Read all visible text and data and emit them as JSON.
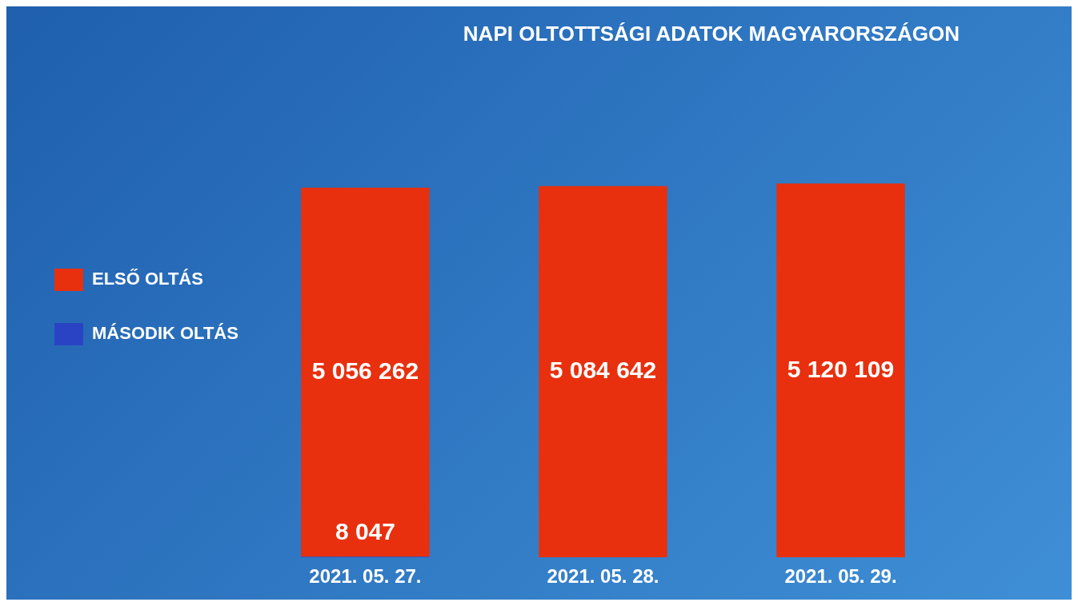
{
  "chart_data": {
    "type": "bar",
    "title": "NAPI OLTOTTSÁGI ADATOK MAGYARORSZÁGON",
    "categories": [
      "2021. 05. 27.",
      "2021. 05. 28.",
      "2021. 05. 29."
    ],
    "stacked": true,
    "legend": "left",
    "grid": false,
    "series": [
      {
        "name": "MÁSODIK OLTÁS",
        "color": "#2a43c4",
        "values": [
          8047,
          null,
          null
        ],
        "value_labels": [
          "8 047",
          null,
          null
        ]
      },
      {
        "name": "ELSŐ OLTÁS",
        "color": "#e8300f",
        "values": [
          5056262,
          5084642,
          5120109
        ],
        "value_labels": [
          "5 056 262",
          "5 084 642",
          "5 120 109"
        ]
      }
    ]
  }
}
